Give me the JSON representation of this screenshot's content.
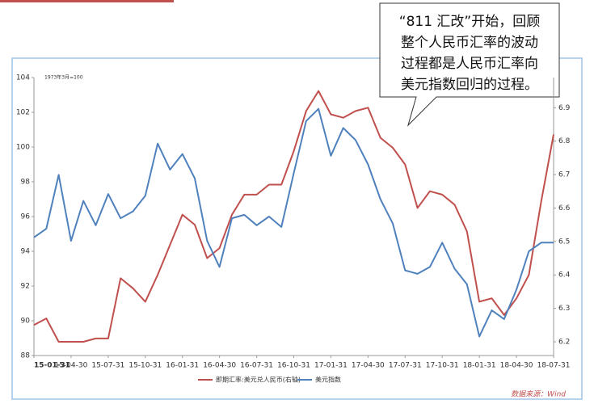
{
  "chart_data": {
    "type": "line",
    "annotation": [
      "“811 汇改”开始，回顾",
      "整个人民币汇率的波动",
      "过程都是人民币汇率向",
      "美元指数回归的过程。"
    ],
    "y_unit_label": "1973年3月=100",
    "source": "数据来源：Wind",
    "x": [
      "15-01-31",
      "15-02-28",
      "15-03-31",
      "15-04-30",
      "15-05-31",
      "15-06-30",
      "15-07-31",
      "15-08-31",
      "15-09-30",
      "15-10-31",
      "15-11-30",
      "15-12-31",
      "16-01-31",
      "16-02-29",
      "16-03-31",
      "16-04-30",
      "16-05-31",
      "16-06-30",
      "16-07-31",
      "16-08-31",
      "16-09-30",
      "16-10-31",
      "16-11-30",
      "16-12-31",
      "17-01-31",
      "17-02-28",
      "17-03-31",
      "17-04-30",
      "17-05-31",
      "17-06-30",
      "17-07-31",
      "17-08-31",
      "17-09-30",
      "17-10-31",
      "17-11-30",
      "17-12-31",
      "18-01-31",
      "18-02-28",
      "18-03-31",
      "18-04-30",
      "18-05-31",
      "18-06-30",
      "18-07-31"
    ],
    "xticks": [
      "15-01-31",
      "15-04-30",
      "15-07-31",
      "15-10-31",
      "16-01-31",
      "16-04-30",
      "16-07-31",
      "16-10-31",
      "17-01-31",
      "17-04-30",
      "17-07-31",
      "17-10-31",
      "18-01-31",
      "18-04-30",
      "18-07-31"
    ],
    "series": [
      {
        "name": "即期汇率:美元兑人民币(右轴)",
        "color": "#c0504d",
        "axis": "y2",
        "values": [
          6.25,
          6.27,
          6.2,
          6.2,
          6.2,
          6.21,
          6.21,
          6.39,
          6.36,
          6.32,
          6.4,
          6.49,
          6.58,
          6.55,
          6.45,
          6.48,
          6.58,
          6.64,
          6.64,
          6.67,
          6.67,
          6.77,
          6.89,
          6.95,
          6.88,
          6.87,
          6.89,
          6.9,
          6.81,
          6.78,
          6.73,
          6.6,
          6.65,
          6.64,
          6.61,
          6.53,
          6.32,
          6.33,
          6.28,
          6.33,
          6.4,
          6.62,
          6.82
        ]
      },
      {
        "name": "美元指数",
        "color": "#4f81bd",
        "values": [
          94.8,
          95.3,
          98.4,
          94.6,
          96.9,
          95.5,
          97.3,
          95.9,
          96.3,
          97.2,
          100.2,
          98.7,
          99.6,
          98.2,
          94.6,
          93.1,
          95.9,
          96.1,
          95.5,
          96.0,
          95.4,
          98.5,
          101.5,
          102.2,
          99.5,
          101.1,
          100.4,
          99.0,
          97.0,
          95.6,
          92.9,
          92.7,
          93.1,
          94.5,
          93.0,
          92.1,
          89.1,
          90.6,
          90.1,
          91.8,
          94.0,
          94.5,
          94.5
        ]
      }
    ],
    "ylim": [
      88,
      104
    ],
    "yticks": [
      88,
      90,
      92,
      94,
      96,
      98,
      100,
      102,
      104
    ],
    "y2lim": [
      6.159,
      6.99
    ],
    "y2ticks": [
      6.2,
      6.3,
      6.4,
      6.5,
      6.6,
      6.7,
      6.8,
      6.9
    ]
  }
}
